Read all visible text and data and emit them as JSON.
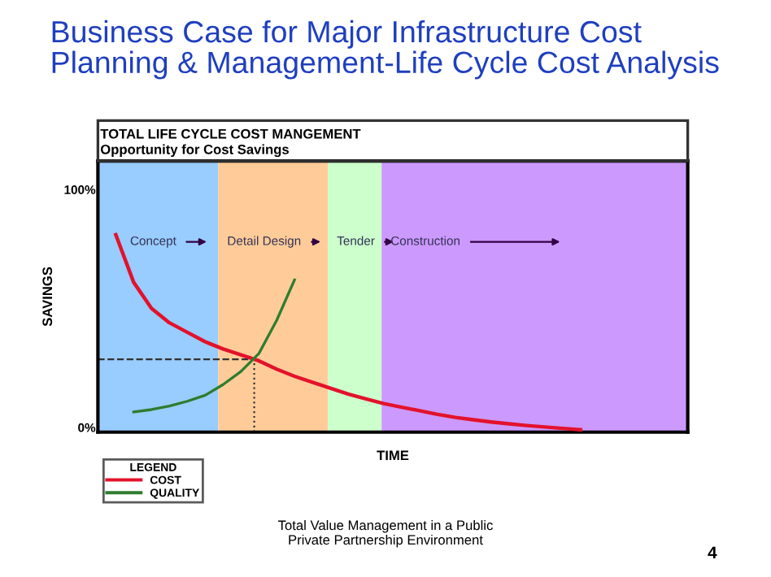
{
  "chart_data": {
    "type": "line",
    "title": "Business Case for Major Infrastructure Cost\nPlanning & Management-Life Cycle Cost Analysis",
    "subtitle": "TOTAL LIFE CYCLE COST MANGEMENT\nOpportunity for Cost Savings",
    "xlabel": "TIME",
    "ylabel": "SAVINGS",
    "legend_title": "LEGEND",
    "categories": [
      null,
      null,
      null,
      null,
      null,
      null,
      null,
      null,
      null,
      null,
      null,
      null,
      null,
      null,
      null,
      null,
      null,
      null,
      null,
      null,
      null,
      null,
      null,
      null,
      null,
      null,
      null,
      null,
      null,
      null,
      null,
      null,
      null,
      null
    ],
    "series": [
      {
        "name": "COST",
        "color": "#e3122b",
        "values": [
          null,
          81,
          61,
          50,
          44,
          40,
          36,
          33,
          30.5,
          28,
          24.5,
          21.5,
          19,
          16.5,
          14,
          12,
          10,
          8.5,
          7,
          5.5,
          4.2,
          3.2,
          2.3,
          1.5,
          0.8,
          0.2,
          -0.4,
          -1,
          null,
          null,
          null,
          null,
          null,
          null
        ]
      },
      {
        "name": "QUALITY",
        "color": "#2e7d2e",
        "values": [
          null,
          null,
          6.5,
          7.5,
          9,
          11,
          13.5,
          18,
          23.5,
          31,
          45,
          62,
          null,
          null,
          null,
          null,
          null,
          null,
          null,
          null,
          null,
          null,
          null,
          null,
          null,
          null,
          null,
          null,
          null,
          null,
          null,
          null,
          null,
          null
        ]
      }
    ],
    "ylim": [
      -2,
      112
    ],
    "yticks": [
      {
        "value": 0,
        "label": "0%"
      },
      {
        "value": 100,
        "label": "100%"
      }
    ],
    "tick_labels": "y",
    "ref_lines": [
      {
        "axis": "y",
        "value": 28.6,
        "line_style": "dashed",
        "color": "#333333"
      }
    ],
    "legend": "bottom left",
    "grid": false,
    "marker": "none",
    "line_style": "solid",
    "annotations": [
      "Concept",
      "Detail Design",
      "Tender",
      "Construction",
      "Total Value Management in a Public\nPrivate Partnership Environment",
      "4"
    ]
  }
}
